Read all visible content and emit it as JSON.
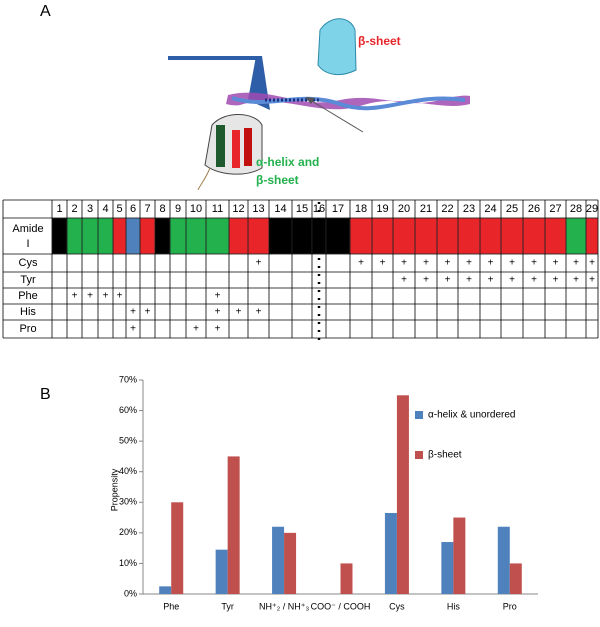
{
  "panel_a": {
    "label": "A",
    "illustration": {
      "label_top": "β-sheet",
      "label_bottom": [
        "α-helix and",
        "β-sheet"
      ]
    },
    "table": {
      "columns": [
        "1",
        "2",
        "3",
        "4",
        "5",
        "6",
        "7",
        "8",
        "9",
        "10",
        "11",
        "12",
        "13",
        "14",
        "15",
        "16",
        "17",
        "18",
        "19",
        "20",
        "21",
        "22",
        "23",
        "24",
        "25",
        "26",
        "27",
        "28",
        "29"
      ],
      "amide_label": [
        "Amide",
        "I"
      ],
      "amide_colors": [
        "#000000",
        "#22b14c",
        "#22b14c",
        "#22b14c",
        "#e8262a",
        "#4f81bd",
        "#e8262a",
        "#000000",
        "#22b14c",
        "#22b14c",
        "#22b14c",
        "#e8262a",
        "#e8262a",
        "#000000",
        "#000000",
        "#000000",
        "#000000",
        "#e8262a",
        "#e8262a",
        "#e8262a",
        "#e8262a",
        "#e8262a",
        "#e8262a",
        "#e8262a",
        "#e8262a",
        "#e8262a",
        "#e8262a",
        "#22b14c",
        "#e8262a"
      ],
      "rows": [
        {
          "name": "Cys",
          "cells": [
            null,
            null,
            null,
            null,
            null,
            null,
            null,
            null,
            null,
            null,
            null,
            null,
            "+",
            null,
            null,
            null,
            null,
            "+",
            "+",
            "+",
            "+",
            "+",
            "+",
            "+",
            "+",
            "+",
            "+",
            "+",
            "+"
          ]
        },
        {
          "name": "Tyr",
          "cells": [
            null,
            null,
            null,
            null,
            null,
            null,
            null,
            null,
            null,
            null,
            null,
            null,
            null,
            null,
            null,
            null,
            null,
            null,
            null,
            "+",
            "+",
            "+",
            "+",
            "+",
            "+",
            "+",
            "+",
            "+",
            "+"
          ]
        },
        {
          "name": "Phe",
          "cells": [
            null,
            "+",
            "+",
            "+",
            "+",
            null,
            null,
            null,
            null,
            null,
            "+",
            null,
            null,
            null,
            null,
            null,
            null,
            null,
            null,
            null,
            null,
            null,
            null,
            null,
            null,
            null,
            null,
            null,
            null
          ]
        },
        {
          "name": "His",
          "cells": [
            null,
            null,
            null,
            null,
            null,
            "+",
            "+",
            null,
            null,
            null,
            "+",
            "+",
            "+",
            null,
            null,
            null,
            null,
            null,
            null,
            null,
            null,
            null,
            null,
            null,
            null,
            null,
            null,
            null,
            null
          ]
        },
        {
          "name": "Pro",
          "cells": [
            null,
            null,
            null,
            null,
            null,
            "+",
            null,
            null,
            null,
            "+",
            "+",
            null,
            null,
            null,
            null,
            null,
            null,
            null,
            null,
            null,
            null,
            null,
            null,
            null,
            null,
            null,
            null,
            null,
            null
          ]
        }
      ]
    }
  },
  "chart_data": {
    "type": "bar",
    "panel_label": "B",
    "y_label": "Propensity",
    "categories": [
      "Phe",
      "Tyr",
      "NH⁺₂ / NH⁺₃",
      "COO⁻ / COOH",
      "Cys",
      "His",
      "Pro"
    ],
    "series": [
      {
        "name": "α-helix & unordered",
        "color": "#4f81bd",
        "values": [
          2.5,
          14.5,
          22,
          0,
          26.5,
          17,
          22
        ]
      },
      {
        "name": "β-sheet",
        "color": "#c0504d",
        "values": [
          30,
          45,
          20,
          10,
          65,
          25,
          10
        ]
      }
    ],
    "ylim": [
      0,
      70
    ],
    "yticks": [
      {
        "value": 0,
        "label": "0%"
      },
      {
        "value": 10,
        "label": "10%"
      },
      {
        "value": 20,
        "label": "20%"
      },
      {
        "value": 30,
        "label": "30%"
      },
      {
        "value": 40,
        "label": "40%"
      },
      {
        "value": 50,
        "label": "50%"
      },
      {
        "value": 60,
        "label": "60%"
      },
      {
        "value": 70,
        "label": "70%"
      }
    ],
    "legend": "right"
  }
}
